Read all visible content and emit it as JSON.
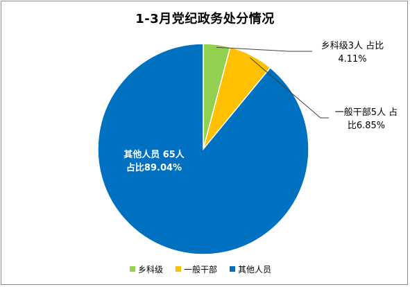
{
  "chart_data": {
    "type": "pie",
    "title": "1-3月党纪政务处分情况",
    "categories": [
      "乡科级",
      "一般干部",
      "其他人员"
    ],
    "values": [
      3,
      5,
      65
    ],
    "percentages": [
      "4.11%",
      "6.85%",
      "89.04%"
    ],
    "colors": [
      "#92d050",
      "#ffc000",
      "#0070c0"
    ],
    "data_labels": [
      {
        "line1": "乡科级3人 占比",
        "line2": "4.11%"
      },
      {
        "line1": "一般干部5人 占",
        "line2": "比6.85%"
      },
      {
        "line1": "其他人员 65人",
        "line2": "占比89.04%"
      }
    ],
    "legend": {
      "position": "bottom",
      "entries": [
        "乡科级",
        "一般干部",
        "其他人员"
      ]
    }
  }
}
